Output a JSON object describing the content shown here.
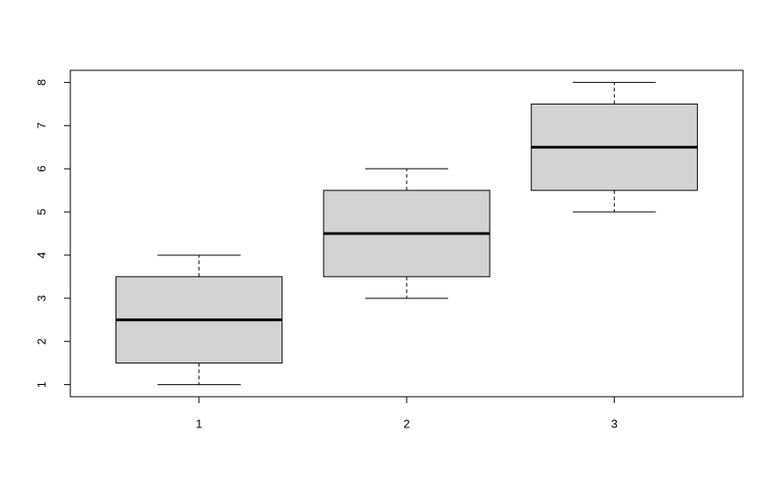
{
  "chart_data": {
    "type": "box",
    "x": [
      1,
      2,
      3
    ],
    "min": [
      1,
      3,
      5
    ],
    "q1": [
      1.5,
      3.5,
      5.5
    ],
    "median": [
      2.5,
      4.5,
      6.5
    ],
    "q3": [
      3.5,
      5.5,
      7.5
    ],
    "max": [
      4,
      6,
      8
    ],
    "color": "#d3d3d3",
    "xlim": [
      0.38,
      3.62
    ],
    "xticks": [
      1,
      2,
      3
    ],
    "ylim": [
      0.72,
      8.28
    ],
    "yticks": [
      1,
      2,
      3,
      4,
      5,
      6,
      7,
      8
    ]
  }
}
